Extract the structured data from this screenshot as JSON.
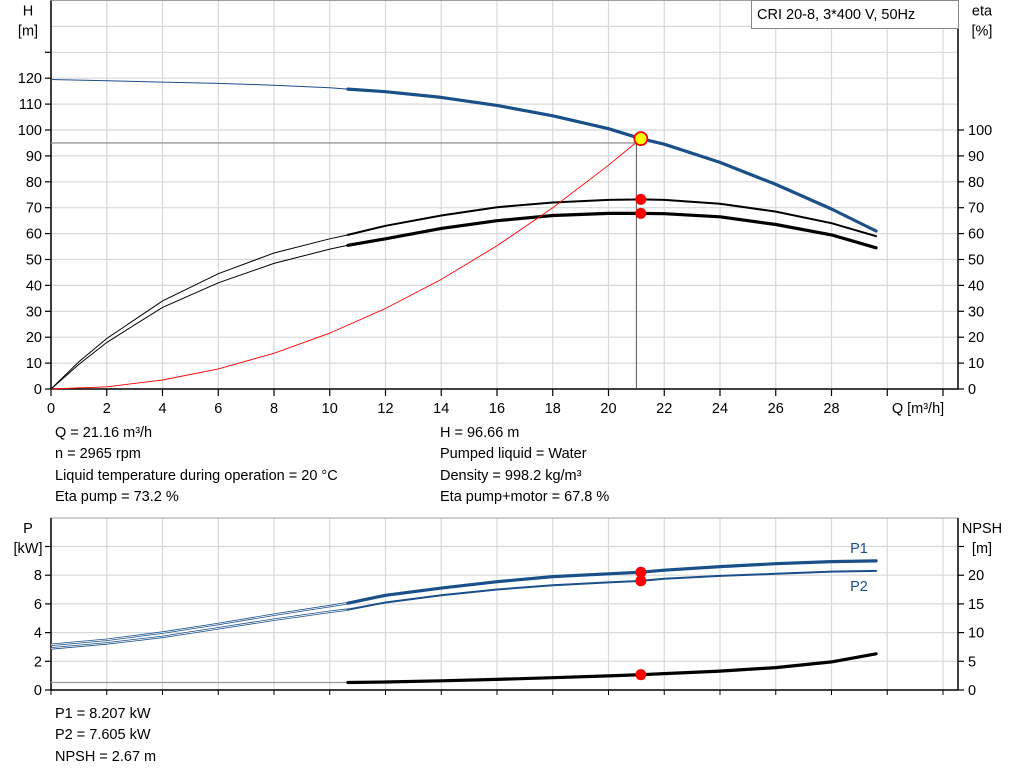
{
  "chart_data": [
    {
      "type": "line",
      "title": "CRI 20-8, 3*400 V, 50Hz",
      "xlabel": "Q [m³/h]",
      "ylabel_left": [
        "H",
        "[m]"
      ],
      "ylabel_right": [
        "eta",
        "[%]"
      ],
      "xlim": [
        0,
        32
      ],
      "ylim_left": [
        0,
        140
      ],
      "ylim_right": [
        0,
        140
      ],
      "x_ticks": [
        "0",
        "2",
        "4",
        "6",
        "8",
        "10",
        "12",
        "14",
        "16",
        "18",
        "20",
        "22",
        "24",
        "26",
        "28"
      ],
      "y_ticks_left": [
        "0",
        "10",
        "20",
        "30",
        "40",
        "50",
        "60",
        "70",
        "80",
        "90",
        "100",
        "110",
        "120"
      ],
      "y_ticks_right": [
        "0",
        "10",
        "20",
        "30",
        "40",
        "50",
        "60",
        "70",
        "80",
        "90",
        "100"
      ],
      "grid": true,
      "operating_range_start_q": 10.65,
      "reference_lines": {
        "q": 21,
        "h": 95
      },
      "series": [
        {
          "key": "head",
          "axis": "left",
          "color": "#1a4f8a",
          "x": [
            0,
            2,
            4,
            6,
            8,
            10,
            10.65,
            12,
            14,
            16,
            18,
            20,
            21.16,
            22,
            24,
            26,
            28,
            29.6
          ],
          "y": [
            119.5,
            119,
            118.5,
            118,
            117.3,
            116.3,
            115.8,
            114.8,
            112.6,
            109.5,
            105.5,
            100.5,
            96.66,
            94.5,
            87.5,
            79,
            69.5,
            61
          ]
        },
        {
          "key": "eta_pump",
          "axis": "right",
          "color": "#000000",
          "x": [
            0,
            1,
            2,
            4,
            6,
            8,
            10,
            10.65,
            12,
            14,
            16,
            18,
            20,
            21.16,
            22,
            24,
            26,
            28,
            29.6
          ],
          "y": [
            0,
            10.5,
            19.5,
            34,
            44.5,
            52.5,
            58,
            59.5,
            63,
            67,
            70.2,
            72,
            73,
            73.2,
            73,
            71.5,
            68.5,
            64,
            59
          ]
        },
        {
          "key": "eta_pump_motor",
          "axis": "right",
          "color": "#000000",
          "x": [
            0,
            1,
            2,
            4,
            6,
            8,
            10,
            10.65,
            12,
            14,
            16,
            18,
            20,
            21.16,
            22,
            24,
            26,
            28,
            29.6
          ],
          "y": [
            0,
            9.5,
            18,
            31.5,
            41,
            48.5,
            54,
            55.5,
            58,
            62,
            65,
            67,
            67.8,
            67.8,
            67.7,
            66.5,
            63.5,
            59.5,
            54.5
          ]
        },
        {
          "key": "system_curve",
          "axis": "left",
          "color": "#ff0000",
          "x": [
            0,
            2,
            4,
            6,
            8,
            10,
            12,
            14,
            16,
            18,
            20,
            21.16
          ],
          "y": [
            0,
            0.86,
            3.46,
            7.77,
            13.8,
            21.6,
            31.1,
            42.3,
            55.3,
            70,
            86.4,
            96.66
          ]
        }
      ],
      "duty_points": [
        {
          "q": 21.16,
          "value": 96.66,
          "axis": "left",
          "color": "#ffff00"
        },
        {
          "q": 21.16,
          "value": 73.2,
          "axis": "right",
          "color": "#ff0000"
        },
        {
          "q": 21.16,
          "value": 67.8,
          "axis": "right",
          "color": "#ff0000"
        }
      ]
    },
    {
      "type": "line",
      "xlim": [
        0,
        32
      ],
      "ylabel_left": [
        "P",
        "[kW]"
      ],
      "ylabel_right": [
        "NPSH",
        "[m]"
      ],
      "ylim_left": [
        0,
        12
      ],
      "ylim_right": [
        0,
        30
      ],
      "y_ticks_left": [
        "0",
        "2",
        "4",
        "6",
        "8"
      ],
      "y_ticks_right": [
        "0",
        "5",
        "10",
        "15",
        "20"
      ],
      "grid": true,
      "series": [
        {
          "key": "p1",
          "name": "P1",
          "axis": "left",
          "color": "#1a4f8a",
          "x": [
            0,
            2,
            4,
            6,
            8,
            10,
            10.65,
            12,
            14,
            16,
            18,
            20,
            21.16,
            22,
            24,
            26,
            28,
            29.6
          ],
          "y": [
            3.15,
            3.5,
            4.0,
            4.6,
            5.25,
            5.85,
            6.05,
            6.6,
            7.1,
            7.55,
            7.9,
            8.1,
            8.207,
            8.35,
            8.6,
            8.8,
            8.95,
            9.0
          ]
        },
        {
          "key": "p2",
          "name": "P2",
          "axis": "left",
          "color": "#1a4f8a",
          "x": [
            0,
            2,
            4,
            6,
            8,
            10,
            10.65,
            12,
            14,
            16,
            18,
            20,
            21.16,
            22,
            24,
            26,
            28,
            29.6
          ],
          "y": [
            2.9,
            3.25,
            3.7,
            4.3,
            4.9,
            5.45,
            5.6,
            6.1,
            6.6,
            7.0,
            7.3,
            7.5,
            7.605,
            7.75,
            7.95,
            8.1,
            8.25,
            8.3
          ]
        },
        {
          "key": "npsh",
          "axis": "right",
          "color": "#000000",
          "x": [
            0,
            10.65,
            12,
            14,
            16,
            18,
            20,
            21.16,
            22,
            24,
            26,
            28,
            29.6
          ],
          "y": [
            1.3,
            1.3,
            1.4,
            1.6,
            1.85,
            2.15,
            2.45,
            2.67,
            2.85,
            3.3,
            3.9,
            4.9,
            6.3
          ]
        }
      ],
      "duty_points": [
        {
          "q": 21.16,
          "value": 8.207,
          "axis": "left",
          "color": "#ff0000"
        },
        {
          "q": 21.16,
          "value": 7.605,
          "axis": "left",
          "color": "#ff0000"
        },
        {
          "q": 21.16,
          "value": 2.67,
          "axis": "right",
          "color": "#ff0000"
        }
      ]
    }
  ],
  "info_top_left": [
    "Q = 21.16 m³/h",
    "n = 2965 rpm",
    "Liquid temperature during operation = 20 °C",
    "Eta pump = 73.2 %"
  ],
  "info_top_right": [
    "H = 96.66 m",
    "Pumped liquid = Water",
    "Density = 998.2 kg/m³",
    "Eta pump+motor = 67.8 %"
  ],
  "info_bottom": [
    "P1 = 8.207 kW",
    "P2 = 7.605 kW",
    "NPSH = 2.67 m"
  ]
}
